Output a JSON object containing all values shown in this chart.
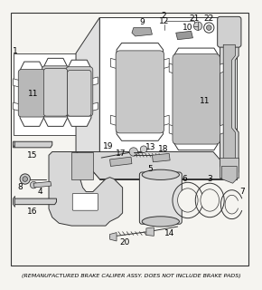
{
  "footnote": "(REMANUFACTURED BRAKE CALIPER ASSY. DOES NOT INCLUDE BRAKE PADS)",
  "bg_color": "#f5f4f0",
  "line_color": "#333333",
  "footnote_fontsize": 4.5,
  "label_fontsize": 6.5
}
